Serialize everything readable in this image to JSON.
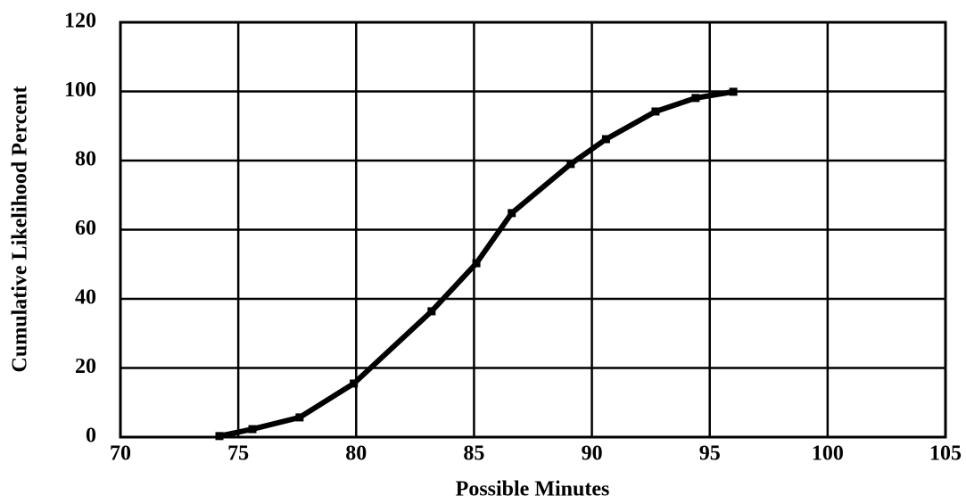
{
  "chart_data": {
    "type": "line",
    "xlabel": "Possible Minutes",
    "ylabel": "Cumulative Likelihood Percent",
    "x": [
      74.2,
      75.6,
      77.6,
      79.9,
      83.2,
      85.1,
      86.6,
      89.1,
      90.6,
      92.7,
      94.4,
      96.0
    ],
    "values": [
      0.3,
      2.3,
      5.7,
      15.5,
      36.4,
      50.3,
      64.8,
      79,
      86.2,
      94.2,
      98.1,
      99.9
    ],
    "color": "#000000",
    "xlim": [
      70,
      105
    ],
    "xticks": [
      70,
      75,
      80,
      85,
      90,
      95,
      100,
      105
    ],
    "ylim": [
      0,
      120
    ],
    "yticks": [
      0,
      20,
      40,
      60,
      80,
      100,
      120
    ],
    "grid": true
  }
}
